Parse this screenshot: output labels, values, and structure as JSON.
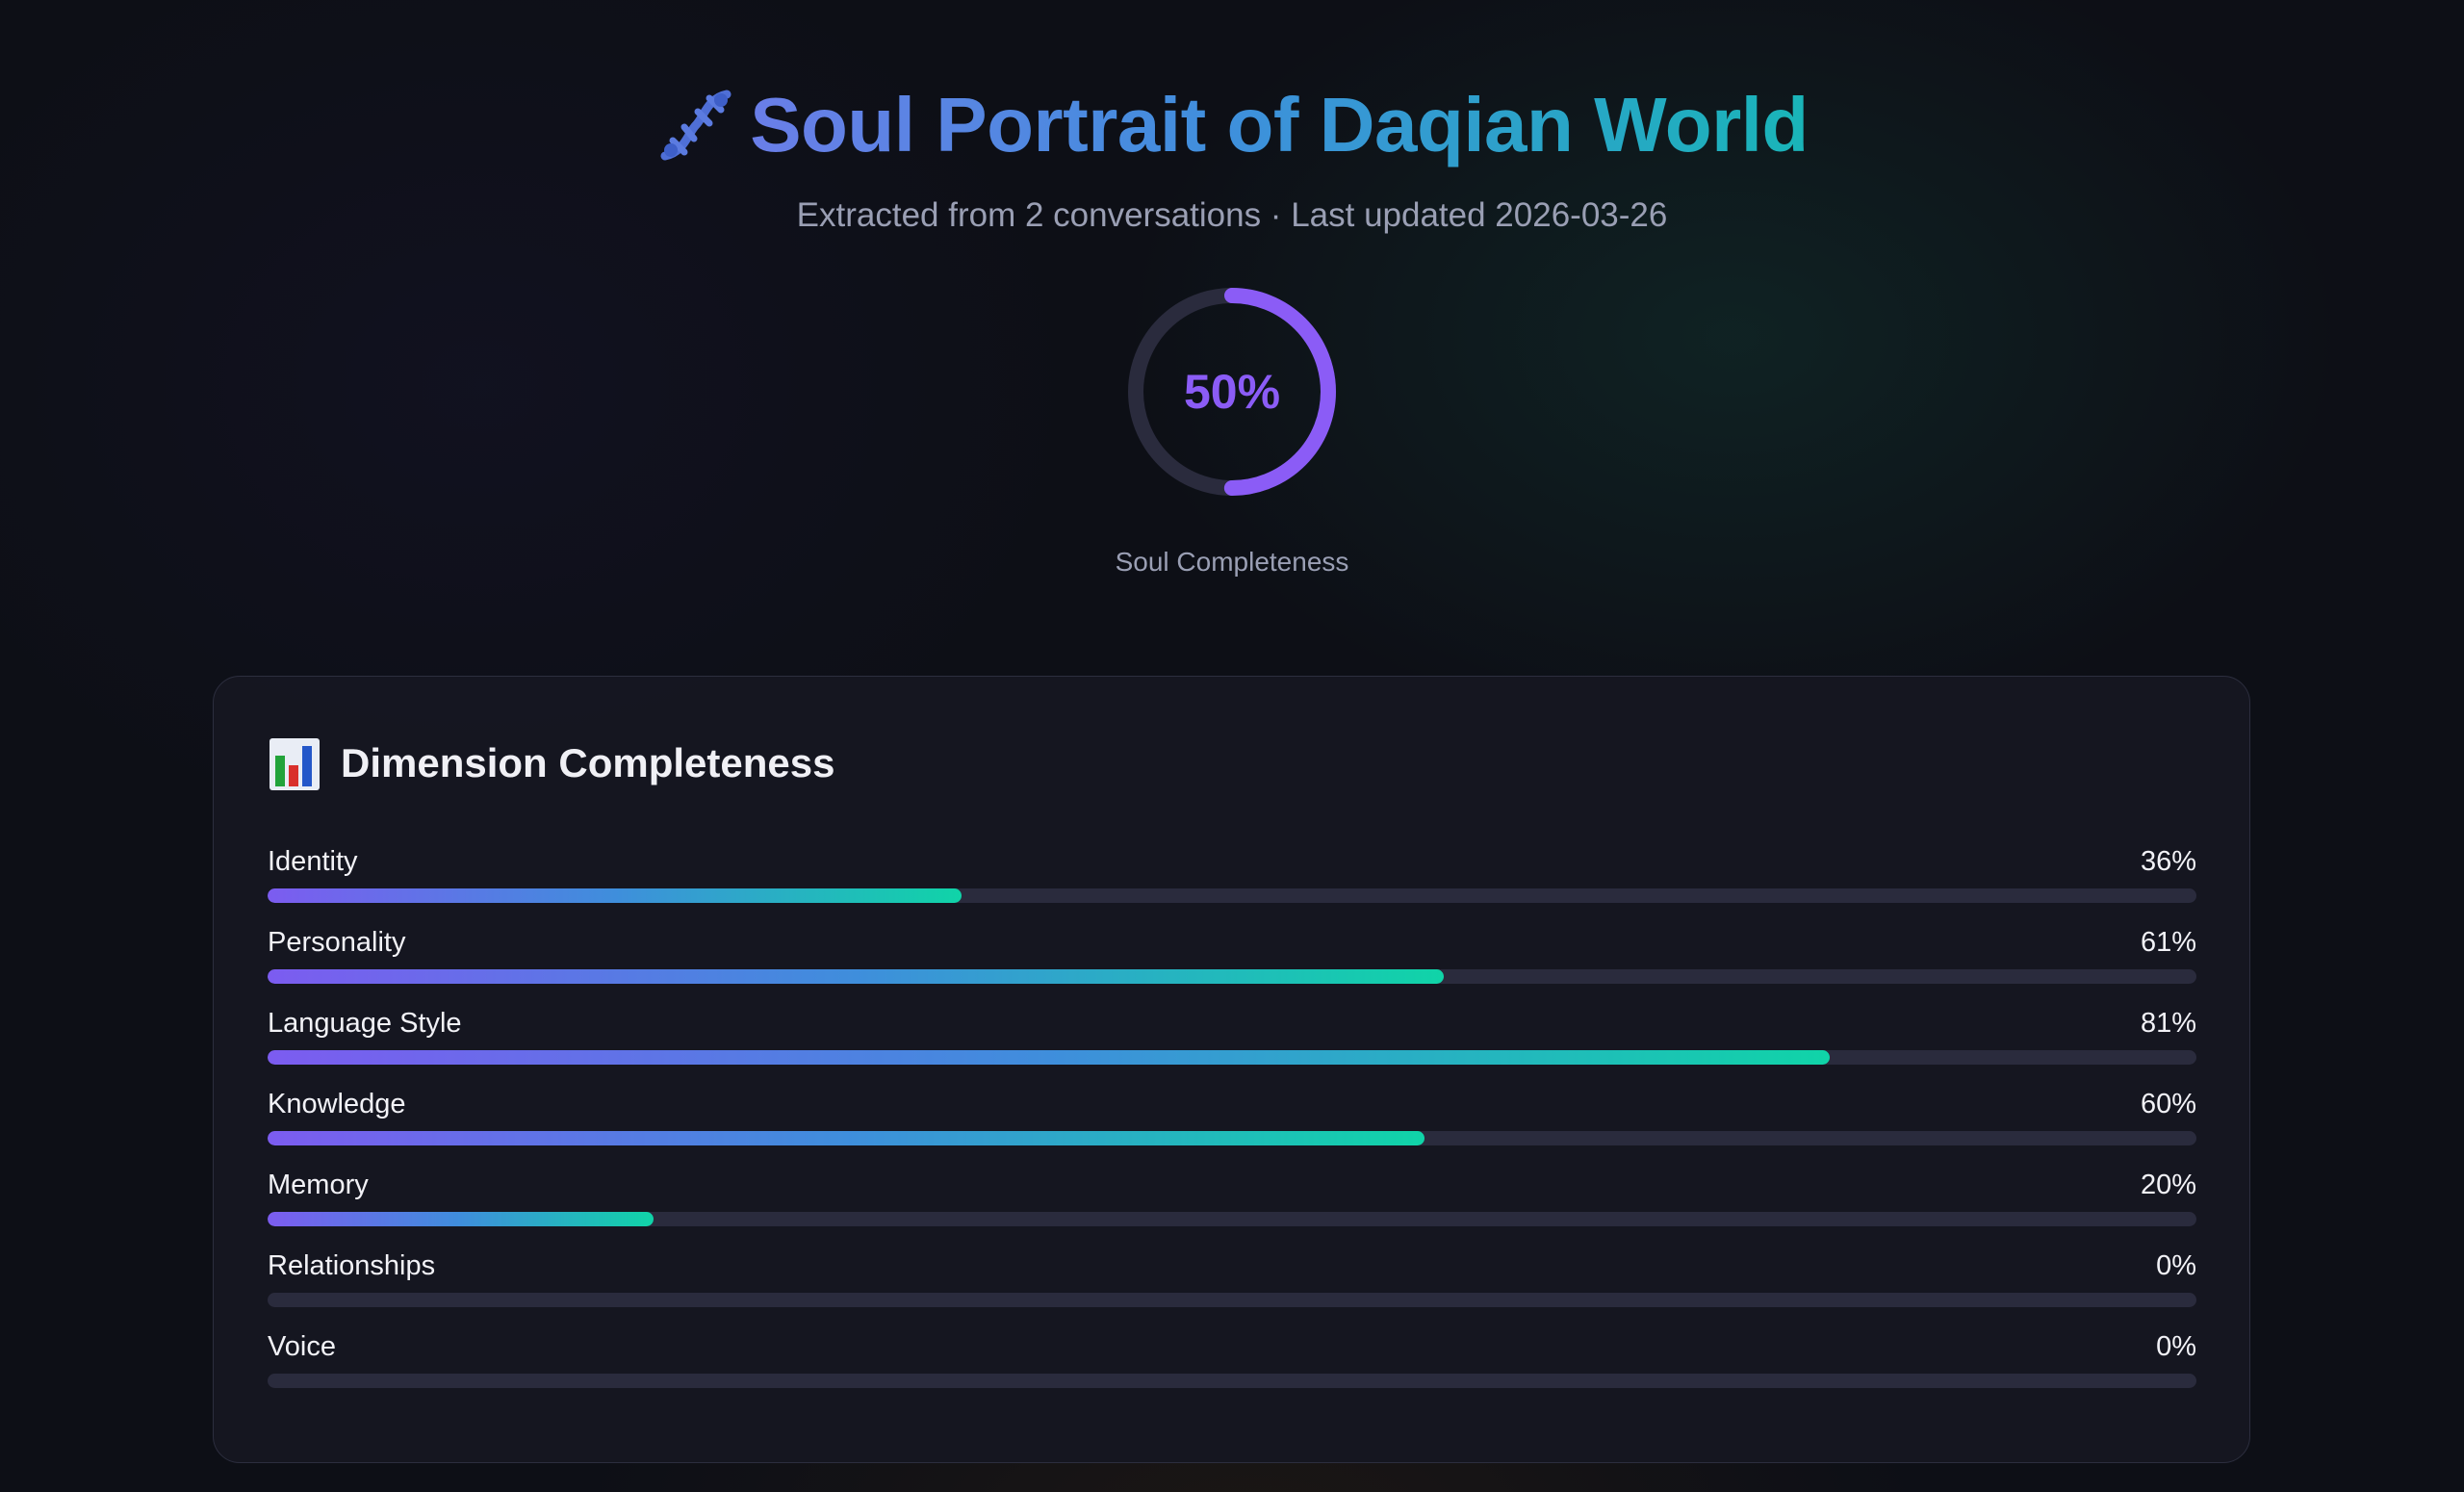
{
  "header": {
    "title": "Soul Portrait of Daqian World",
    "icon": "dna-icon",
    "subtitle": "Extracted from 2 conversations · Last updated 2026-03-26"
  },
  "completeness": {
    "value": 50,
    "value_label": "50%",
    "label": "Soul Completeness",
    "color": "#8b5cf6",
    "track_color": "#2a2b3d"
  },
  "dimensions_card": {
    "icon": "bar-chart-icon",
    "title": "Dimension Completeness",
    "items": [
      {
        "label": "Identity",
        "value": 36,
        "pct_label": "36%"
      },
      {
        "label": "Personality",
        "value": 61,
        "pct_label": "61%"
      },
      {
        "label": "Language Style",
        "value": 81,
        "pct_label": "81%"
      },
      {
        "label": "Knowledge",
        "value": 60,
        "pct_label": "60%"
      },
      {
        "label": "Memory",
        "value": 20,
        "pct_label": "20%"
      },
      {
        "label": "Relationships",
        "value": 0,
        "pct_label": "0%"
      },
      {
        "label": "Voice",
        "value": 0,
        "pct_label": "0%"
      }
    ],
    "gradient": [
      "#7c5cf0",
      "#3f8edc",
      "#10d4a8"
    ]
  }
}
